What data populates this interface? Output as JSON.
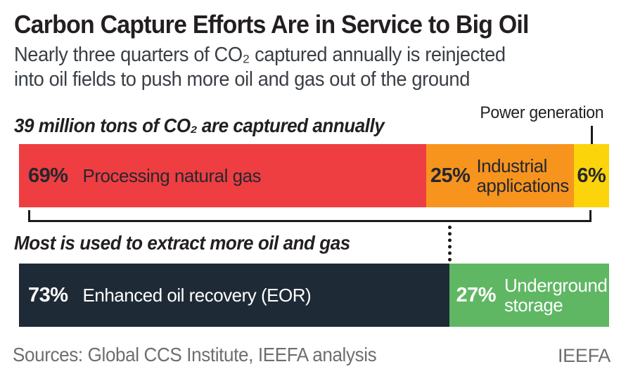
{
  "header": {
    "title": "Carbon Capture Efforts Are in Service to Big Oil",
    "subtitle": "Nearly three quarters of CO₂ captured annually is reinjected\ninto oil fields to push more oil and gas out of the ground"
  },
  "annotations": {
    "power_generation_callout": "Power generation"
  },
  "colors": {
    "red": "#ee3e42",
    "orange": "#f7941e",
    "yellow": "#fcd40b",
    "navy": "#1e2a36",
    "green": "#5fb763",
    "title_text": "#231f20",
    "bar_dark_text": "#26272e",
    "bar_light_text": "#ffffff",
    "footer_gray": "#6d6e71",
    "connector_black": "#1a1a1a"
  },
  "chart_data": {
    "type": "bar",
    "orientation": "horizontal-stacked",
    "unit": "percent",
    "bars": [
      {
        "caption": "39 million tons of CO₂ are captured annually",
        "total": "39 million tons of CO₂ per year",
        "segments": [
          {
            "name": "Processing natural gas",
            "value": 69,
            "pct_label": "69%",
            "label": "Processing natural gas",
            "color": "#ee3e42"
          },
          {
            "name": "Industrial applications",
            "value": 25,
            "pct_label": "25%",
            "label": "Industrial\napplications",
            "color": "#f7941e"
          },
          {
            "name": "Power generation",
            "value": 6,
            "pct_label": "6%",
            "label": "",
            "color": "#fcd40b",
            "callout": "Power generation"
          }
        ]
      },
      {
        "caption": "Most is used to extract more oil and gas",
        "segments": [
          {
            "name": "Enhanced oil recovery (EOR)",
            "value": 73,
            "pct_label": "73%",
            "label": "Enhanced oil recovery (EOR)",
            "color": "#1e2a36"
          },
          {
            "name": "Underground storage",
            "value": 27,
            "pct_label": "27%",
            "label": "Underground\nstorage",
            "color": "#5fb763"
          }
        ]
      }
    ]
  },
  "footer": {
    "sources": "Sources: Global CCS Institute, IEEFA analysis",
    "brand": "IEEFA"
  }
}
